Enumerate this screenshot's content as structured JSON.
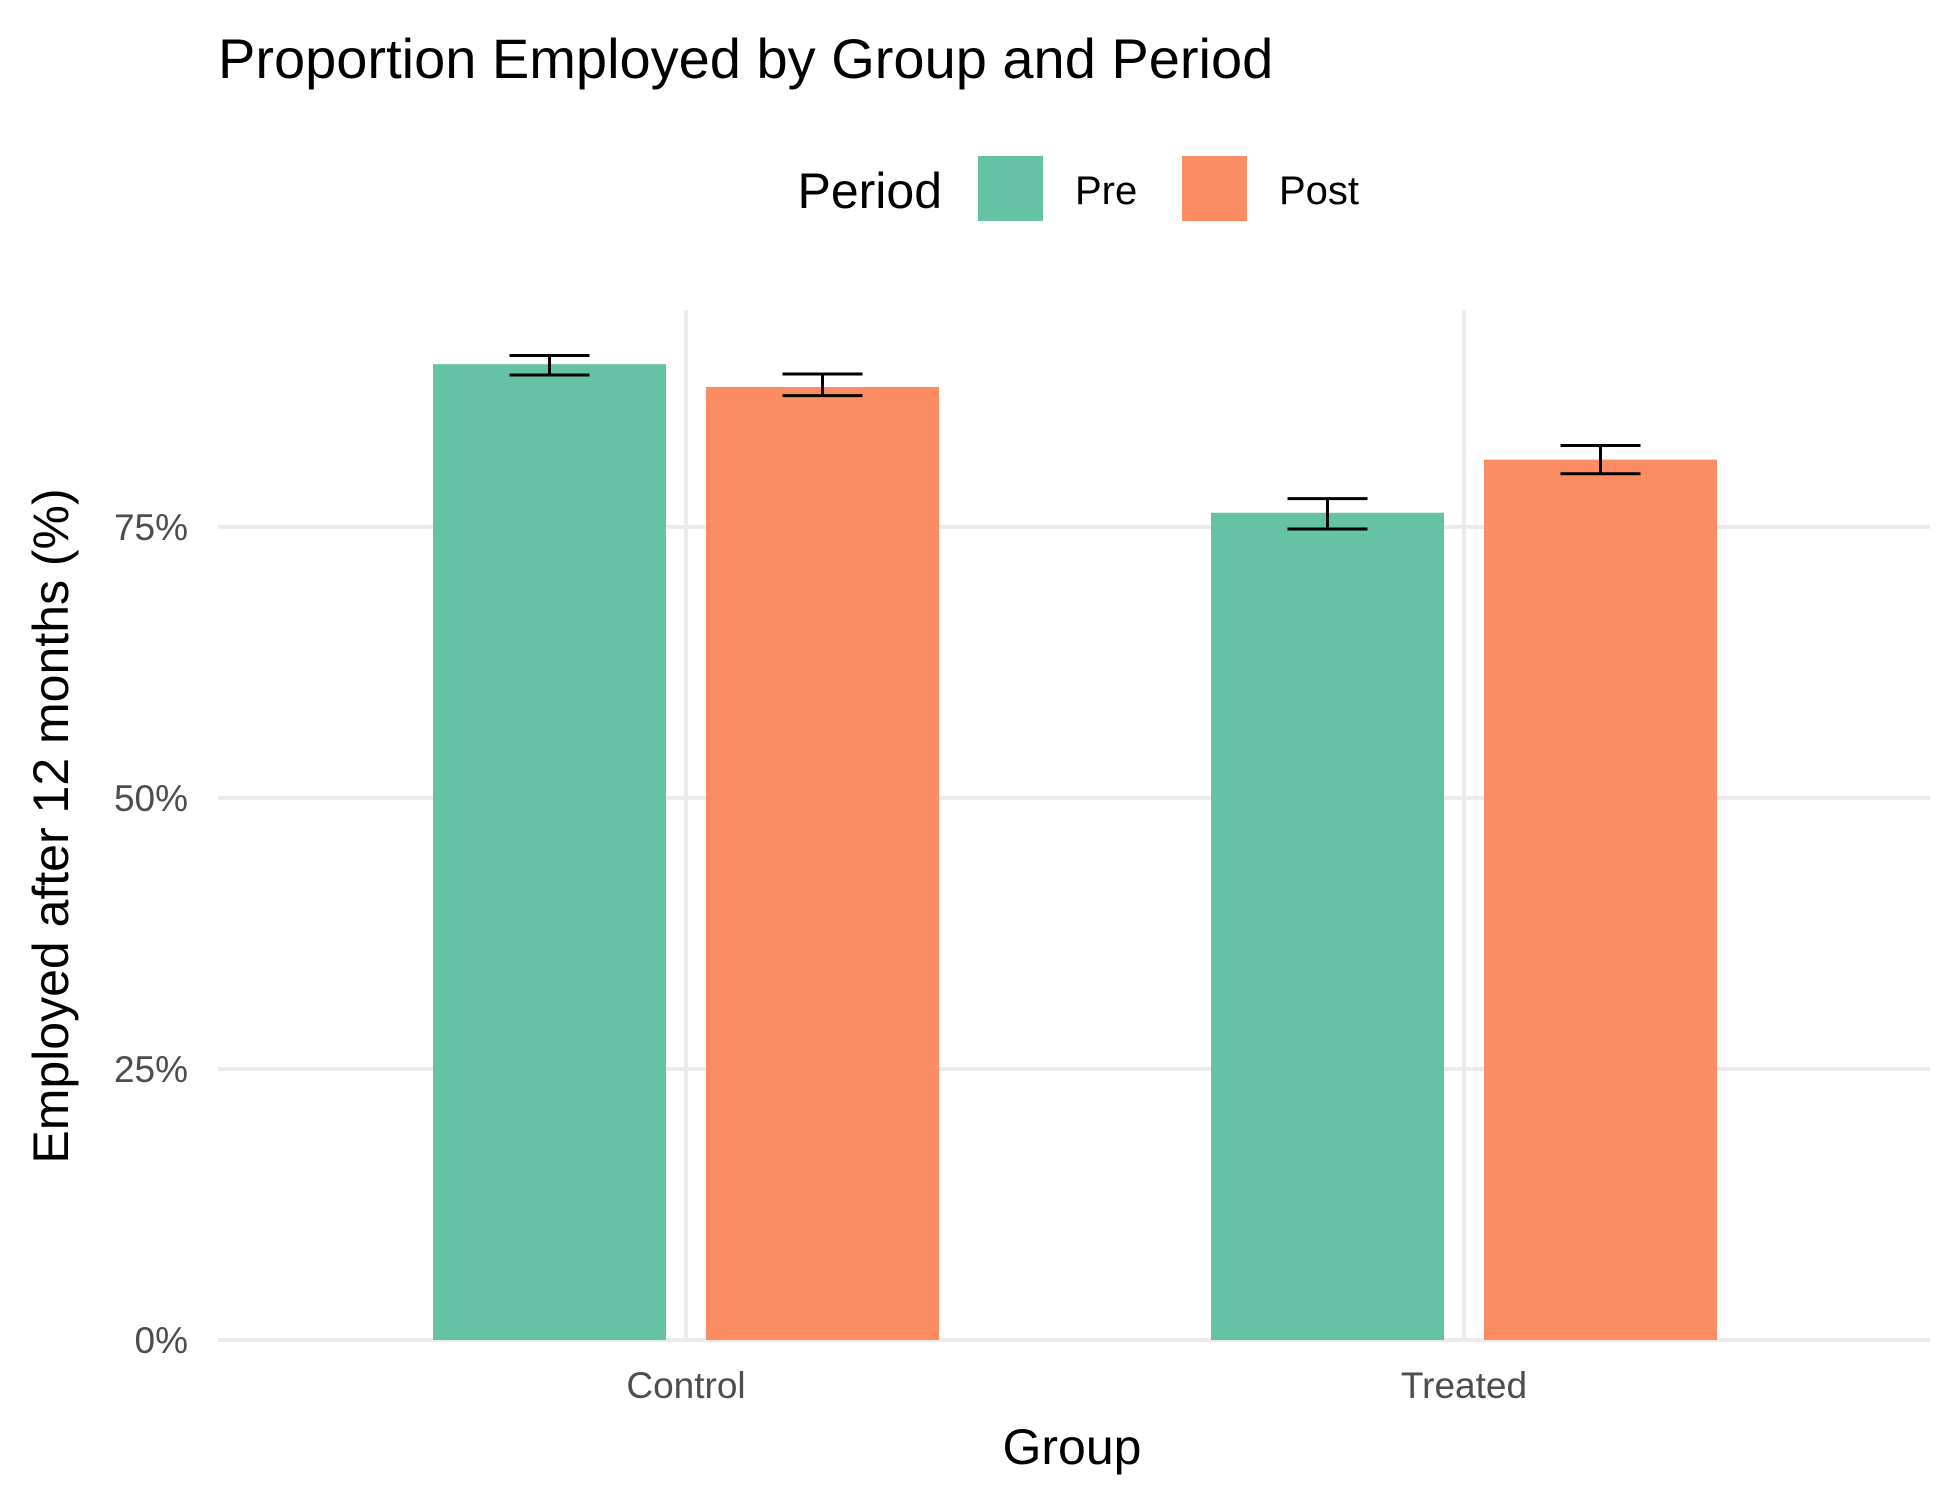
{
  "chart_data": {
    "type": "bar",
    "title": "Proportion Employed by Group and Period",
    "xlabel": "Group",
    "ylabel": "Employed after 12 months (%)",
    "categories": [
      "Control",
      "Treated"
    ],
    "series": [
      {
        "name": "Pre",
        "color": "#66c2a5",
        "values": [
          90,
          76.3
        ],
        "error_low": [
          89,
          74.8
        ],
        "error_high": [
          90.8,
          77.6
        ]
      },
      {
        "name": "Post",
        "color": "#fc8d62",
        "values": [
          87.9,
          81.2
        ],
        "error_low": [
          87.1,
          79.9
        ],
        "error_high": [
          89.1,
          82.5
        ]
      }
    ],
    "ylim": [
      0,
      95
    ],
    "yticks": [
      0,
      25,
      50,
      75
    ],
    "ytick_labels": [
      "0%",
      "25%",
      "50%",
      "75%"
    ],
    "legend": {
      "title": "Period",
      "position": "top"
    },
    "grid": true
  }
}
